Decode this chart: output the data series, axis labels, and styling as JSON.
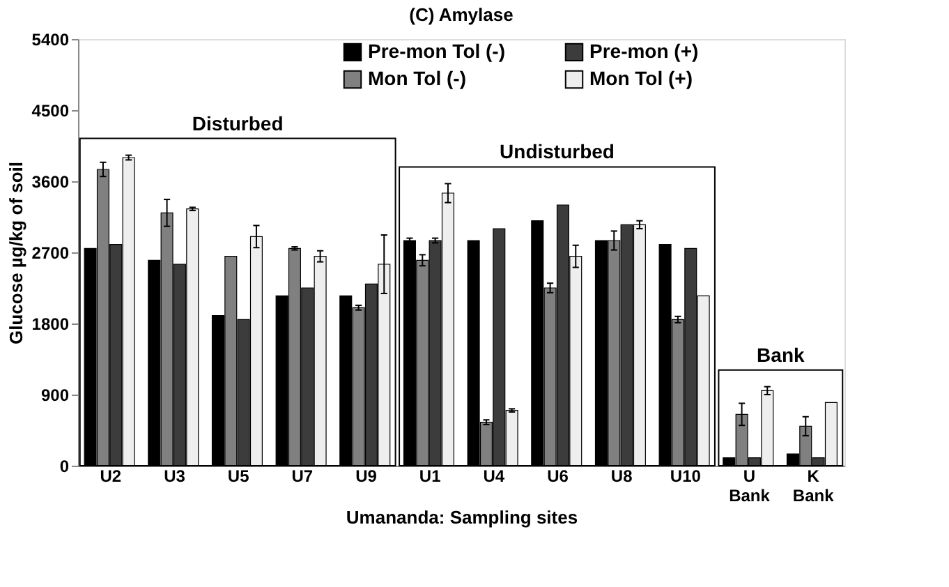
{
  "chart_data": {
    "type": "bar",
    "title": "(C) Amylase",
    "xlabel": "Umananda: Sampling sites",
    "ylabel": "Glucose µg/kg of soil",
    "categories": [
      "U2",
      "U3",
      "U5",
      "U7",
      "U9",
      "U1",
      "U4",
      "U6",
      "U8",
      "U10",
      "U\nBank",
      "K\nBank"
    ],
    "series": [
      {
        "name": "Pre-mon Tol (-)",
        "color": "#000000",
        "values": [
          2750,
          2600,
          1900,
          2150,
          2150,
          2850,
          2850,
          3100,
          2850,
          2800,
          100,
          150
        ],
        "errors": [
          null,
          null,
          null,
          null,
          null,
          30,
          null,
          null,
          null,
          null,
          null,
          null
        ]
      },
      {
        "name": "Mon Tol (-)",
        "color": "#808080",
        "values": [
          3750,
          3200,
          2650,
          2750,
          2000,
          2600,
          550,
          2250,
          2850,
          1850,
          650,
          500
        ],
        "errors": [
          90,
          170,
          null,
          20,
          30,
          70,
          30,
          60,
          120,
          40,
          140,
          120
        ]
      },
      {
        "name": "Pre-mon (+)",
        "color": "#3c3c3c",
        "values": [
          2800,
          2550,
          1850,
          2250,
          2300,
          2850,
          3000,
          3300,
          3050,
          2750,
          100,
          100
        ],
        "errors": [
          null,
          null,
          null,
          null,
          null,
          30,
          null,
          null,
          null,
          null,
          null,
          null
        ]
      },
      {
        "name": "Mon Tol (+)",
        "color": "#eeeeee",
        "values": [
          3900,
          3250,
          2900,
          2650,
          2550,
          3450,
          700,
          2650,
          3050,
          2150,
          950,
          800
        ],
        "errors": [
          30,
          20,
          140,
          70,
          370,
          120,
          20,
          140,
          50,
          null,
          50,
          null
        ]
      }
    ],
    "annotations": [
      "Disturbed",
      "Undisturbed",
      "Bank"
    ],
    "ylim": [
      0,
      5400
    ],
    "yticks": [
      0,
      900,
      1800,
      2700,
      3600,
      4500,
      5400
    ],
    "grid": false,
    "legend": "top"
  }
}
